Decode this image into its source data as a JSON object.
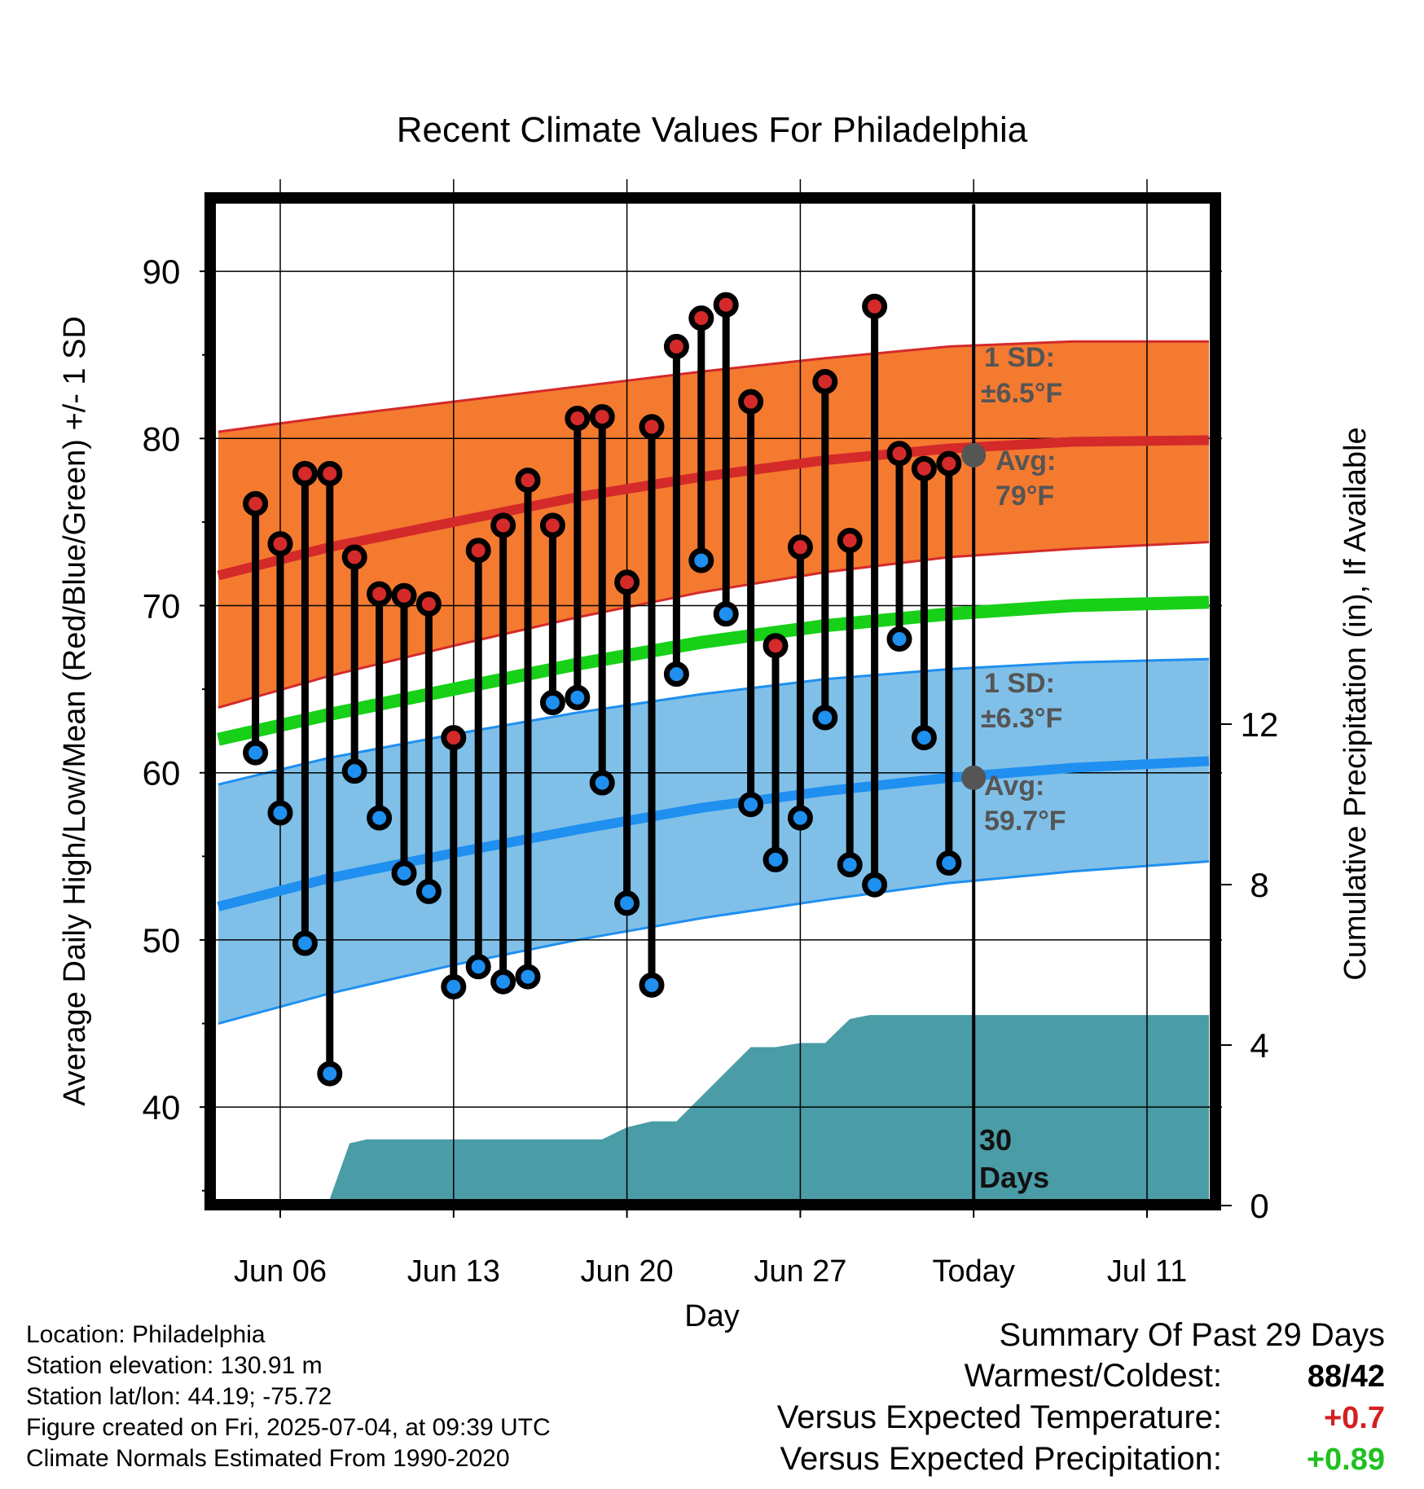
{
  "chart_data": {
    "type": "line",
    "title": "Recent Climate Values For Philadelphia",
    "xlabel": "Day",
    "ylabel": "Average Daily High/Low/Mean (Red/Blue/Green) +/- 1 SD",
    "y2label": "Cumulative Precipitation (in), If Available",
    "xlim": [
      0.5,
      40.5
    ],
    "ylim": [
      34.5,
      94
    ],
    "y2lim": [
      0,
      18
    ],
    "x_ticks": [
      {
        "x": 3,
        "label": "Jun 06"
      },
      {
        "x": 10,
        "label": "Jun 13"
      },
      {
        "x": 17,
        "label": "Jun 20"
      },
      {
        "x": 24,
        "label": "Jun 27"
      },
      {
        "x": 31,
        "label": "Today"
      },
      {
        "x": 38,
        "label": "Jul 11"
      }
    ],
    "y_ticks": [
      40,
      50,
      60,
      70,
      80,
      90
    ],
    "y2_ticks": [
      0,
      4,
      8,
      12
    ],
    "today_x": 31,
    "today_label": "30 Days",
    "normals": {
      "x": [
        0.5,
        5,
        10,
        15,
        20,
        25,
        30,
        35,
        40.5
      ],
      "high_avg": [
        71.8,
        73.5,
        75.0,
        76.5,
        77.7,
        78.7,
        79.4,
        79.8,
        79.9
      ],
      "high_upper": [
        80.4,
        81.3,
        82.2,
        83.1,
        84.0,
        84.8,
        85.5,
        85.8,
        85.8
      ],
      "high_lower": [
        63.9,
        65.8,
        67.6,
        69.3,
        70.8,
        72.0,
        72.9,
        73.4,
        73.8
      ],
      "mean_avg": [
        62.0,
        63.5,
        65.0,
        66.5,
        67.8,
        68.8,
        69.5,
        70.0,
        70.2
      ],
      "low_avg": [
        52.0,
        53.7,
        55.2,
        56.6,
        57.9,
        58.9,
        59.7,
        60.3,
        60.7
      ],
      "low_upper": [
        59.3,
        60.9,
        62.3,
        63.6,
        64.7,
        65.6,
        66.2,
        66.6,
        66.8
      ],
      "low_lower": [
        45.0,
        46.8,
        48.5,
        50.0,
        51.3,
        52.4,
        53.4,
        54.1,
        54.7
      ]
    },
    "series": [
      {
        "name": "High",
        "x": [
          2,
          3,
          4,
          5,
          6,
          7,
          8,
          9,
          10,
          11,
          12,
          13,
          14,
          15,
          16,
          17,
          18,
          19,
          20,
          21,
          22,
          23,
          24,
          25,
          26,
          27,
          28,
          29,
          30
        ],
        "values": [
          76.1,
          73.7,
          77.9,
          77.9,
          72.9,
          70.7,
          70.6,
          70.1,
          62.1,
          73.3,
          74.8,
          77.5,
          74.8,
          81.2,
          81.3,
          71.4,
          80.7,
          85.5,
          87.2,
          88.0,
          82.2,
          67.6,
          73.5,
          83.4,
          73.9,
          87.9,
          79.1,
          78.2,
          78.5
        ]
      },
      {
        "name": "Low",
        "x": [
          2,
          3,
          4,
          5,
          6,
          7,
          8,
          9,
          10,
          11,
          12,
          13,
          14,
          15,
          16,
          17,
          18,
          19,
          20,
          21,
          22,
          23,
          24,
          25,
          26,
          27,
          28,
          29,
          30
        ],
        "values": [
          61.2,
          57.6,
          49.8,
          42.0,
          60.1,
          57.3,
          54.0,
          52.9,
          47.2,
          48.4,
          47.5,
          47.8,
          64.2,
          64.5,
          59.4,
          52.2,
          47.3,
          65.9,
          72.7,
          69.5,
          58.1,
          54.8,
          57.3,
          63.3,
          54.5,
          53.3,
          68.0,
          62.1,
          54.6
        ]
      }
    ],
    "precip": {
      "x": [
        5,
        5.8,
        6.5,
        14,
        16,
        17,
        18,
        19,
        22,
        23,
        24,
        25,
        26,
        26.8,
        31,
        40.5
      ],
      "values": [
        0,
        1.55,
        1.65,
        1.65,
        1.65,
        1.95,
        2.1,
        2.1,
        3.95,
        3.95,
        4.05,
        4.05,
        4.65,
        4.75,
        4.75,
        4.75
      ]
    },
    "annotations": {
      "high_sd": "1 SD:",
      "high_sd_val": "±6.5°F",
      "high_avg_label": "Avg:",
      "high_avg_val": "79°F",
      "low_sd": "1 SD:",
      "low_sd_val": "±6.3°F",
      "low_avg_label": "Avg:",
      "low_avg_val": "59.7°F",
      "today_high": 79,
      "today_low": 59.7
    },
    "colors": {
      "high_band": "#f47a30",
      "high_line": "#d42a2a",
      "low_band": "#80c0e8",
      "low_line": "#1f8ff0",
      "mean_line": "#17d017",
      "precip": "#4a9ca6",
      "high_dot": "#d42a2a",
      "low_dot": "#1f8ff0",
      "annotation": "#555555"
    }
  },
  "footer": {
    "location": "Location: Philadelphia",
    "elevation": "Station elevation: 130.91 m",
    "latlon": "Station lat/lon: 44.19; -75.72",
    "created": "Figure created on Fri, 2025-07-04, at 09:39 UTC",
    "normals": "Climate Normals Estimated From 1990-2020"
  },
  "summary": {
    "title": "Summary Of Past 29 Days",
    "warm_label": "Warmest/Coldest:",
    "warm_value": "88/42",
    "temp_label": "Versus Expected Temperature:",
    "temp_value": "+0.7",
    "precip_label": "Versus Expected Precipitation:",
    "precip_value": "+0.89"
  }
}
